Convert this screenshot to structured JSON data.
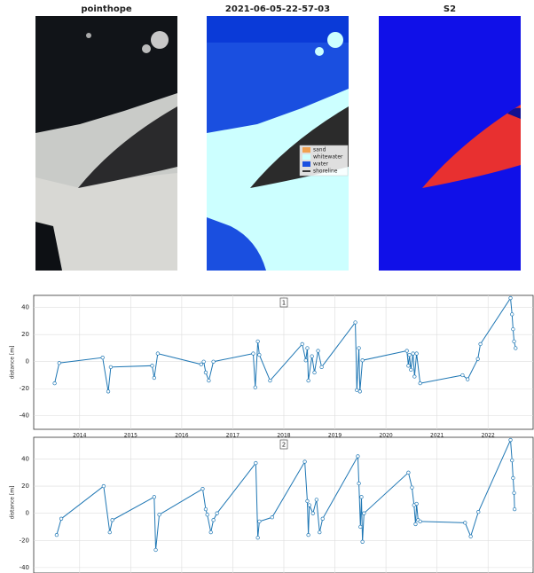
{
  "images": {
    "titles": [
      "pointhope",
      "2021-06-05-22-57-03",
      "S2"
    ],
    "legend": [
      {
        "label": "sand",
        "color": "#f0a050"
      },
      {
        "label": "whitewater",
        "color": "#ccffff"
      },
      {
        "label": "water",
        "color": "#1a4fe0"
      },
      {
        "label": "shoreline",
        "color": "#000000"
      }
    ]
  },
  "chart_data": [
    {
      "type": "line",
      "label": "1",
      "y_label": "distance [m]",
      "color": "#1f77b4",
      "grid": true,
      "x": [
        2013.51,
        2013.6,
        2014.45,
        2014.56,
        2014.61,
        2015.42,
        2015.46,
        2015.53,
        2016.38,
        2016.43,
        2016.47,
        2016.53,
        2016.62,
        2017.4,
        2017.44,
        2017.49,
        2017.52,
        2017.73,
        2018.36,
        2018.43,
        2018.46,
        2018.48,
        2018.55,
        2018.6,
        2018.67,
        2018.74,
        2019.4,
        2019.43,
        2019.47,
        2019.49,
        2019.54,
        2020.41,
        2020.44,
        2020.46,
        2020.49,
        2020.53,
        2020.56,
        2020.6,
        2020.67,
        2021.5,
        2021.6,
        2021.8,
        2021.85,
        2022.44,
        2022.47,
        2022.49,
        2022.51,
        2022.54
      ],
      "values": [
        -16,
        -1,
        3,
        -22,
        -4,
        -3,
        -12,
        6,
        -2,
        0,
        -8,
        -14,
        0,
        6,
        -19,
        15,
        5,
        -14,
        13,
        1,
        10,
        -14,
        4,
        -8,
        8,
        -4,
        29,
        -21,
        10,
        -22,
        1,
        8,
        -3,
        5,
        -6,
        6,
        -11,
        6,
        -16,
        -10,
        -13,
        2,
        13,
        47,
        35,
        24,
        15,
        10
      ],
      "xlim": [
        2013.1,
        2022.9
      ],
      "ylim": [
        -50,
        49
      ],
      "xticks": [
        2014,
        2015,
        2016,
        2017,
        2018,
        2019,
        2020,
        2021,
        2022
      ],
      "yticks": [
        -40,
        -20,
        0,
        20,
        40
      ]
    },
    {
      "type": "line",
      "label": "2",
      "y_label": "distance [m]",
      "color": "#1f77b4",
      "grid": true,
      "x": [
        2013.55,
        2013.64,
        2014.47,
        2014.59,
        2014.64,
        2015.46,
        2015.49,
        2015.56,
        2016.41,
        2016.47,
        2016.5,
        2016.57,
        2016.62,
        2016.69,
        2017.45,
        2017.49,
        2017.52,
        2017.77,
        2018.41,
        2018.46,
        2018.48,
        2018.5,
        2018.57,
        2018.64,
        2018.7,
        2018.76,
        2019.45,
        2019.47,
        2019.5,
        2019.52,
        2019.54,
        2019.57,
        2020.44,
        2020.51,
        2020.55,
        2020.58,
        2020.6,
        2020.63,
        2020.67,
        2021.55,
        2021.66,
        2021.81,
        2022.44,
        2022.47,
        2022.49,
        2022.51,
        2022.52
      ],
      "values": [
        -16,
        -4,
        20,
        -14,
        -5,
        12,
        -27,
        -1,
        18,
        3,
        -1,
        -14,
        -5,
        0,
        37,
        -18,
        -6,
        -3,
        38,
        9,
        -16,
        6,
        0,
        10,
        -14,
        -4,
        42,
        22,
        -10,
        12,
        -21,
        0,
        30,
        19,
        6,
        -8,
        7,
        -5,
        -6,
        -7,
        -17,
        1,
        54,
        39,
        26,
        15,
        3
      ],
      "xlim": [
        2013.1,
        2022.9
      ],
      "ylim": [
        -44,
        56
      ],
      "xticks": [
        2014,
        2015,
        2016,
        2017,
        2018,
        2019,
        2020,
        2021,
        2022
      ],
      "yticks": [
        -40,
        -20,
        0,
        20,
        40
      ]
    }
  ]
}
